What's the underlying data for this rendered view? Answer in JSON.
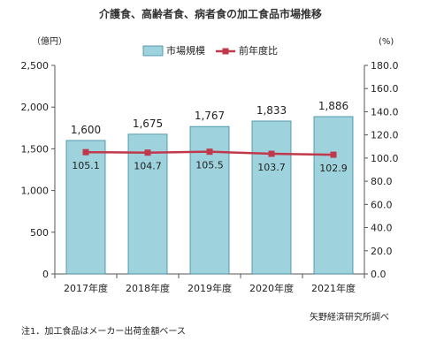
{
  "chart_data": {
    "type": "bar",
    "title": "介護食、高齢者食、病者食の加工食品市場推移",
    "categories": [
      "2017年度",
      "2018年度",
      "2019年度",
      "2020年度",
      "2021年度"
    ],
    "series": [
      {
        "name": "市場規模",
        "type": "bar",
        "axis": "left",
        "color": "#9ed3de",
        "values": [
          1600,
          1675,
          1767,
          1833,
          1886
        ],
        "labels": [
          "1,600",
          "1,675",
          "1,767",
          "1,833",
          "1,886"
        ]
      },
      {
        "name": "前年度比",
        "type": "line",
        "axis": "right",
        "color": "#c0394b",
        "values": [
          105.1,
          104.7,
          105.5,
          103.7,
          102.9
        ],
        "labels": [
          "105.1",
          "104.7",
          "105.5",
          "103.7",
          "102.9"
        ]
      }
    ],
    "y_left": {
      "unit": "（億円）",
      "min": 0,
      "max": 2500,
      "ticks": [
        0,
        500,
        1000,
        1500,
        2000,
        2500
      ],
      "tick_labels": [
        "0",
        "500",
        "1,000",
        "1,500",
        "2,000",
        "2,500"
      ]
    },
    "y_right": {
      "unit": "(%)",
      "min": 0,
      "max": 180,
      "ticks": [
        0,
        20,
        40,
        60,
        80,
        100,
        120,
        140,
        160,
        180
      ],
      "tick_labels": [
        "0.0",
        "20.0",
        "40.0",
        "60.0",
        "80.0",
        "100.0",
        "120.0",
        "140.0",
        "160.0",
        "180.0"
      ]
    },
    "legend": "top-center",
    "grid": false
  },
  "source": "矢野経済研究所調べ",
  "note": "注1．加工食品はメーカー出荷金額ベース",
  "colors": {
    "bar_fill": "#9ed3de",
    "bar_stroke": "#3b8a9e",
    "line": "#c0394b",
    "axis": "#555555"
  }
}
